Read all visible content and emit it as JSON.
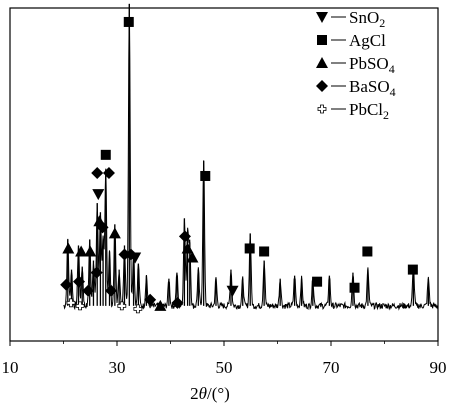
{
  "chart_data": {
    "type": "line",
    "xlabel_prefix": "2",
    "xlabel_theta": "θ",
    "xlabel_suffix": "/(°)",
    "ylabel": "",
    "xlim": [
      10,
      90
    ],
    "xticks": [
      10,
      30,
      50,
      70,
      90
    ],
    "x_tick_labels": [
      "10",
      "30",
      "50",
      "70",
      "90"
    ],
    "yaxis_ticks_shown": false,
    "legend_position": "top-right",
    "legend": [
      {
        "key": "SnO2",
        "label_main": "SnO",
        "label_sub": "2",
        "marker": "triangle-down",
        "color": "#000000"
      },
      {
        "key": "AgCl",
        "label_main": "AgCl",
        "label_sub": "",
        "marker": "square",
        "color": "#000000"
      },
      {
        "key": "PbSO4",
        "label_main": "PbSO",
        "label_sub": "4",
        "marker": "triangle-up",
        "color": "#000000"
      },
      {
        "key": "BaSO4",
        "label_main": "BaSO",
        "label_sub": "4",
        "marker": "diamond",
        "color": "#000000"
      },
      {
        "key": "PbCl2",
        "label_main": "PbCl",
        "label_sub": "2",
        "marker": "open-cross",
        "color": "#000000"
      }
    ],
    "baseline_intensity": 8,
    "peaks": [
      {
        "x": 20.8,
        "y": 22
      },
      {
        "x": 21.5,
        "y": 12
      },
      {
        "x": 22.8,
        "y": 20
      },
      {
        "x": 23.5,
        "y": 13
      },
      {
        "x": 24.9,
        "y": 22
      },
      {
        "x": 25.6,
        "y": 15
      },
      {
        "x": 26.3,
        "y": 34
      },
      {
        "x": 26.9,
        "y": 31
      },
      {
        "x": 27.4,
        "y": 22
      },
      {
        "x": 27.9,
        "y": 45
      },
      {
        "x": 28.6,
        "y": 18
      },
      {
        "x": 29.6,
        "y": 27
      },
      {
        "x": 30.4,
        "y": 12
      },
      {
        "x": 31.4,
        "y": 20
      },
      {
        "x": 32.3,
        "y": 100
      },
      {
        "x": 33.1,
        "y": 18
      },
      {
        "x": 34.0,
        "y": 14
      },
      {
        "x": 35.5,
        "y": 10
      },
      {
        "x": 39.7,
        "y": 9
      },
      {
        "x": 41.2,
        "y": 11
      },
      {
        "x": 42.6,
        "y": 29
      },
      {
        "x": 43.2,
        "y": 25
      },
      {
        "x": 43.6,
        "y": 21
      },
      {
        "x": 45.2,
        "y": 12
      },
      {
        "x": 46.2,
        "y": 48
      },
      {
        "x": 48.5,
        "y": 9
      },
      {
        "x": 51.3,
        "y": 12
      },
      {
        "x": 53.5,
        "y": 9
      },
      {
        "x": 54.9,
        "y": 24
      },
      {
        "x": 57.5,
        "y": 15
      },
      {
        "x": 60.5,
        "y": 9
      },
      {
        "x": 63.2,
        "y": 10
      },
      {
        "x": 64.5,
        "y": 9
      },
      {
        "x": 66.6,
        "y": 9
      },
      {
        "x": 69.7,
        "y": 10
      },
      {
        "x": 74.1,
        "y": 11
      },
      {
        "x": 76.9,
        "y": 12
      },
      {
        "x": 85.4,
        "y": 13
      },
      {
        "x": 88.2,
        "y": 9
      }
    ],
    "markers": [
      {
        "phase": "AgCl",
        "x": 32.2,
        "y": 102
      },
      {
        "phase": "AgCl",
        "x": 27.9,
        "y": 58
      },
      {
        "phase": "AgCl",
        "x": 46.5,
        "y": 51
      },
      {
        "phase": "AgCl",
        "x": 54.8,
        "y": 27
      },
      {
        "phase": "AgCl",
        "x": 57.5,
        "y": 26
      },
      {
        "phase": "AgCl",
        "x": 67.4,
        "y": 16
      },
      {
        "phase": "AgCl",
        "x": 74.4,
        "y": 14
      },
      {
        "phase": "AgCl",
        "x": 76.8,
        "y": 26
      },
      {
        "phase": "AgCl",
        "x": 85.3,
        "y": 20
      },
      {
        "phase": "SnO2",
        "x": 26.5,
        "y": 45
      },
      {
        "phase": "SnO2",
        "x": 33.4,
        "y": 24
      },
      {
        "phase": "SnO2",
        "x": 51.6,
        "y": 13
      },
      {
        "phase": "PbSO4",
        "x": 20.9,
        "y": 27
      },
      {
        "phase": "PbSO4",
        "x": 23.3,
        "y": 26
      },
      {
        "phase": "PbSO4",
        "x": 25.0,
        "y": 26
      },
      {
        "phase": "PbSO4",
        "x": 26.7,
        "y": 36
      },
      {
        "phase": "PbSO4",
        "x": 29.6,
        "y": 32
      },
      {
        "phase": "PbSO4",
        "x": 43.2,
        "y": 27
      },
      {
        "phase": "PbSO4",
        "x": 44.1,
        "y": 24
      },
      {
        "phase": "BaSO4",
        "x": 26.3,
        "y": 52
      },
      {
        "phase": "BaSO4",
        "x": 28.5,
        "y": 52
      },
      {
        "phase": "BaSO4",
        "x": 27.3,
        "y": 34
      },
      {
        "phase": "BaSO4",
        "x": 20.5,
        "y": 15
      },
      {
        "phase": "BaSO4",
        "x": 22.9,
        "y": 16
      },
      {
        "phase": "BaSO4",
        "x": 24.6,
        "y": 13
      },
      {
        "phase": "BaSO4",
        "x": 26.2,
        "y": 19
      },
      {
        "phase": "BaSO4",
        "x": 28.9,
        "y": 13
      },
      {
        "phase": "BaSO4",
        "x": 42.7,
        "y": 31
      },
      {
        "phase": "BaSO4",
        "x": 31.4,
        "y": 25
      },
      {
        "phase": "BaSO4",
        "x": 32.6,
        "y": 25
      },
      {
        "phase": "BaSO4",
        "x": 36.2,
        "y": 10
      },
      {
        "phase": "BaSO4",
        "x": 41.3,
        "y": 9
      },
      {
        "phase": "PbSO4",
        "x": 38.1,
        "y": 8
      },
      {
        "phase": "PbCl2",
        "x": 21.4,
        "y": 9
      },
      {
        "phase": "PbCl2",
        "x": 23.1,
        "y": 8
      },
      {
        "phase": "PbCl2",
        "x": 30.9,
        "y": 8
      },
      {
        "phase": "PbCl2",
        "x": 33.9,
        "y": 7
      }
    ]
  }
}
